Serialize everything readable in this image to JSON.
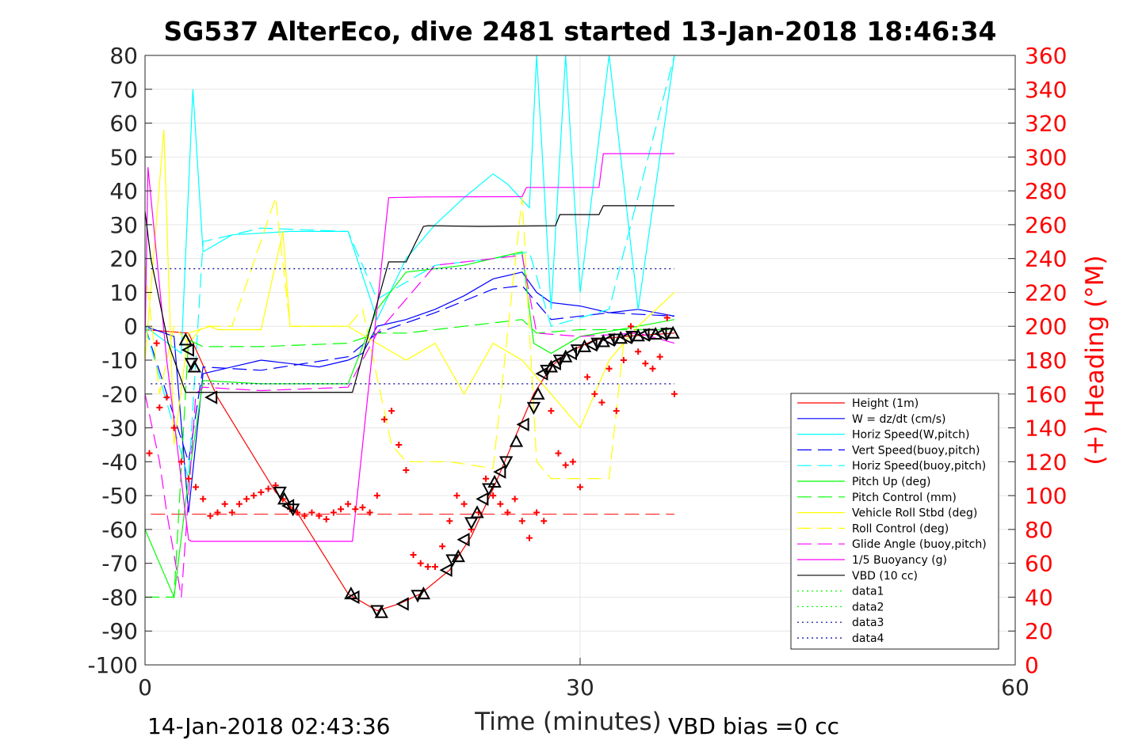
{
  "chart_data": {
    "type": "line",
    "title": "SG537 AlterEco, dive 2481 started 13-Jan-2018 18:46:34",
    "xlabel": "Time (minutes)",
    "ylabel_right": "(+) Heading (°M)",
    "xlim": [
      0,
      60
    ],
    "ylim": [
      -100,
      80
    ],
    "ylim_right": [
      0,
      360
    ],
    "xticks": [
      "0",
      "30",
      "60"
    ],
    "yticks": [
      "80",
      "70",
      "60",
      "50",
      "40",
      "30",
      "20",
      "10",
      "0",
      "-10",
      "-20",
      "-30",
      "-40",
      "-50",
      "-60",
      "-70",
      "-80",
      "-90",
      "-100"
    ],
    "yticks_right": [
      "360",
      "340",
      "320",
      "300",
      "280",
      "260",
      "240",
      "220",
      "200",
      "180",
      "160",
      "140",
      "120",
      "100",
      "80",
      "60",
      "40",
      "20",
      "0"
    ],
    "grid": true,
    "legend_position": "lower-right",
    "footer_left": "14-Jan-2018 02:43:36",
    "footer_right": "VBD bias =0 cc",
    "colors": {
      "red": "#ff0000",
      "blue": "#0000ff",
      "cyan": "#00ffff",
      "darkblue": "#0000a0",
      "green": "#00ff00",
      "yellow": "#ffff00",
      "magenta": "#ff00ff",
      "black": "#000000"
    },
    "series": [
      {
        "name": "Height (1m)",
        "color": "#ff0000",
        "style": "solid",
        "x": [
          0,
          3,
          5,
          9,
          10.5,
          14,
          16,
          17.5,
          19,
          21,
          22.5,
          24,
          25.5,
          26.8,
          28,
          29,
          30,
          31,
          33,
          36.5
        ],
        "y": [
          -1,
          -2,
          -21,
          -49,
          -55,
          -79,
          -84,
          -82,
          -79,
          -72,
          -62,
          -48,
          -33,
          -20,
          -12,
          -8,
          -6,
          -4,
          -3,
          -2
        ]
      },
      {
        "name": "W = dz/dt (cm/s)",
        "color": "#0000ff",
        "style": "solid",
        "x": [
          0,
          2,
          3,
          4,
          6,
          8,
          10,
          12,
          14,
          15,
          16,
          18,
          20,
          22,
          24,
          26,
          27,
          28,
          30,
          32,
          34,
          36.5
        ],
        "y": [
          0,
          -3,
          -55,
          -14,
          -12,
          -10,
          -11,
          -12,
          -10,
          -8,
          0,
          2,
          5,
          9,
          14,
          16,
          10,
          7,
          6,
          4,
          5,
          3
        ]
      },
      {
        "name": "Horiz Speed(W,pitch)",
        "color": "#00ffff",
        "style": "solid",
        "x": [
          0,
          2.5,
          3.3,
          4,
          6,
          10,
          14,
          15,
          16,
          18,
          20,
          22,
          24,
          25,
          26.5,
          27,
          28,
          29,
          30,
          32,
          34,
          36.5
        ],
        "y": [
          0,
          -8,
          70,
          22,
          27,
          28,
          28,
          15,
          2,
          20,
          30,
          38,
          45,
          42,
          35,
          80,
          5,
          80,
          10,
          80,
          5,
          80
        ]
      },
      {
        "name": "Vert Speed(buoy,pitch)",
        "color": "#0000ff",
        "style": "dashed",
        "x": [
          0,
          3,
          4,
          8,
          14,
          16,
          20,
          24,
          26,
          28,
          32,
          36.5
        ],
        "y": [
          0,
          -40,
          -12,
          -13,
          -9,
          -2,
          4,
          11,
          12,
          2,
          4,
          3
        ]
      },
      {
        "name": "Horiz Speed(buoy,pitch)",
        "color": "#00ffff",
        "style": "dashed",
        "x": [
          0,
          3,
          4,
          8,
          14,
          16,
          20,
          24,
          26.5,
          28,
          32,
          36.5
        ],
        "y": [
          0,
          -45,
          25,
          29,
          28,
          8,
          18,
          20,
          22,
          0,
          5,
          80
        ]
      },
      {
        "name": "Pitch Up (deg)",
        "color": "#00ff00",
        "style": "solid",
        "x": [
          0,
          1,
          2,
          3,
          4,
          8,
          14,
          16,
          18,
          22,
          26,
          26.8,
          28,
          30,
          34,
          36.5
        ],
        "y": [
          -60,
          -70,
          -80,
          -45,
          -16,
          -17,
          -17,
          5,
          16,
          18,
          22,
          -5,
          -8,
          -3,
          0,
          2
        ]
      },
      {
        "name": "Pitch Control (mm)",
        "color": "#00ff00",
        "style": "dashed",
        "x": [
          0,
          2,
          3,
          4,
          8,
          14,
          16,
          18,
          22,
          26,
          27,
          30,
          36.5
        ],
        "y": [
          -80,
          -80,
          -4,
          -6,
          -6,
          -5,
          -2,
          -2,
          0,
          2,
          -2,
          -1,
          -1
        ]
      },
      {
        "name": "Vehicle Roll Stbd (deg)",
        "color": "#ffff00",
        "style": "solid",
        "x": [
          0,
          1.3,
          2,
          3,
          4.5,
          5,
          8,
          9.5,
          10,
          14,
          16,
          18,
          20,
          22,
          24,
          26,
          28,
          30,
          32,
          34,
          36.5
        ],
        "y": [
          -10,
          58,
          -35,
          -2,
          0,
          -1,
          -1,
          28,
          0,
          0,
          -5,
          -10,
          -5,
          -20,
          -5,
          -10,
          -20,
          -30,
          -10,
          0,
          10
        ]
      },
      {
        "name": "Roll Control (deg)",
        "color": "#ffff00",
        "style": "dashed",
        "x": [
          0,
          1,
          2,
          3,
          4,
          6,
          9,
          10,
          14,
          15,
          17,
          18,
          19,
          21,
          24,
          26,
          27,
          28,
          30,
          32,
          33
        ],
        "y": [
          18,
          -20,
          0,
          -5,
          0,
          0,
          38,
          0,
          0,
          5,
          -35,
          -40,
          -40,
          -40,
          -42,
          38,
          -40,
          -45,
          -45,
          -45,
          -5
        ]
      },
      {
        "name": "Glide Angle (buoy,pitch)",
        "color": "#ff00ff",
        "style": "dashed",
        "x": [
          0,
          1,
          1.5,
          2.5,
          3.5,
          4,
          8,
          14,
          16,
          20,
          24,
          26,
          27,
          30,
          34,
          36.5
        ],
        "y": [
          -20,
          -40,
          -55,
          -80,
          -20,
          -18,
          -19,
          -18,
          -2,
          18,
          20,
          21,
          -2,
          -3,
          -2,
          -5
        ]
      },
      {
        "name": "1/5 Buoyancy (g)",
        "color": "#ff00ff",
        "style": "solid",
        "x": [
          0,
          0.2,
          1.5,
          3,
          3.2,
          14.3,
          16.8,
          19.2,
          26,
          26.3,
          31.3,
          31.6,
          36.5
        ],
        "y": [
          -5,
          47,
          -10,
          -63,
          -63.5,
          -63.5,
          38,
          38.2,
          38.3,
          41,
          41,
          51,
          51
        ]
      },
      {
        "name": "VBD (10 cc)",
        "color": "#000000",
        "style": "solid",
        "x": [
          0,
          0.4,
          1.6,
          2.8,
          14.3,
          16.8,
          18,
          19.2,
          19.5,
          23,
          28.3,
          28.6,
          31.3,
          31.6,
          36.5
        ],
        "y": [
          34,
          20,
          -5,
          -19.5,
          -19.5,
          19,
          19,
          29.5,
          29.7,
          29.5,
          29.7,
          33,
          33,
          35.6,
          35.6
        ]
      },
      {
        "name": "data1",
        "color": "#00ff00",
        "style": "dotted",
        "x": [],
        "y": []
      },
      {
        "name": "data2",
        "color": "#00ff00",
        "style": "dotted",
        "x": [],
        "y": []
      },
      {
        "name": "data3",
        "color": "#0000a0",
        "style": "dotted",
        "x": [
          0.4,
          36.5
        ],
        "y": [
          17,
          17
        ]
      },
      {
        "name": "data4",
        "color": "#0000a0",
        "style": "dotted",
        "x": [
          0.4,
          36.5
        ],
        "y": [
          -17,
          -17
        ]
      }
    ],
    "reference_lines": [
      {
        "color": "#ff0000",
        "style": "dashed",
        "y": -55.5,
        "x": [
          0.4,
          36.5
        ]
      }
    ],
    "heading_points": {
      "color": "#ff0000",
      "marker": "+",
      "axis": "right",
      "x": [
        0.3,
        0.8,
        1.0,
        1.5,
        2.0,
        2.5,
        3.0,
        3.5,
        4.0,
        4.5,
        5.0,
        5.5,
        6.0,
        6.5,
        7.0,
        7.5,
        8.0,
        8.5,
        9.0,
        9.5,
        10.0,
        10.5,
        11.0,
        11.5,
        12.0,
        12.5,
        13.0,
        13.5,
        14.0,
        14.5,
        15.0,
        15.5,
        16.0,
        16.5,
        17.0,
        17.5,
        18.0,
        18.5,
        19.0,
        19.5,
        20.0,
        20.5,
        21.0,
        21.5,
        22.0,
        22.5,
        23.0,
        23.5,
        24.0,
        24.5,
        25.0,
        25.5,
        26.0,
        26.5,
        27.0,
        27.5,
        28.0,
        28.5,
        29.0,
        29.5,
        30.0,
        30.5,
        31.0,
        31.5,
        32.0,
        32.5,
        33.0,
        33.5,
        34.0,
        34.5,
        35.0,
        35.5,
        36.0,
        36.5
      ],
      "y": [
        125,
        190,
        152,
        158,
        140,
        120,
        110,
        105,
        98,
        88,
        90,
        95,
        90,
        95,
        98,
        100,
        102,
        104,
        106,
        98,
        92,
        90,
        88,
        90,
        88,
        86,
        90,
        92,
        95,
        92,
        93,
        90,
        100,
        145,
        150,
        130,
        115,
        65,
        60,
        58,
        58,
        70,
        85,
        100,
        95,
        80,
        90,
        110,
        100,
        95,
        90,
        98,
        85,
        75,
        90,
        85,
        150,
        125,
        118,
        120,
        105,
        170,
        160,
        155,
        175,
        150,
        180,
        200,
        185,
        178,
        175,
        182,
        205,
        160
      ]
    },
    "direction_markers": {
      "color": "#000000",
      "marker": "triangle",
      "x": [
        2.8,
        3.0,
        3.2,
        3.4,
        4.6,
        9.3,
        9.6,
        9.9,
        10.2,
        14.2,
        14.4,
        16.0,
        16.3,
        17.8,
        18.8,
        19.2,
        20.8,
        21.2,
        21.6,
        22.0,
        22.5,
        22.9,
        23.3,
        23.7,
        24.1,
        24.5,
        24.9,
        25.6,
        26.1,
        26.8,
        27.1,
        27.4,
        27.7,
        28.0,
        28.3,
        28.6,
        29.0,
        29.4,
        29.8,
        30.3,
        30.8,
        31.2,
        31.6,
        32.0,
        32.4,
        32.8,
        33.2,
        33.6,
        34.0,
        34.4,
        34.8,
        35.2,
        35.6,
        36.0,
        36.4
      ],
      "y": [
        -4,
        -7,
        -11,
        -12,
        -21,
        -49,
        -51,
        -53,
        -54,
        -79,
        -80,
        -84,
        -84.5,
        -82,
        -79.5,
        -79,
        -72,
        -69,
        -68,
        -63,
        -58,
        -55,
        -51,
        -48,
        -46,
        -43,
        -40,
        -34,
        -29,
        -24,
        -20,
        -14,
        -13,
        -12,
        -11,
        -10,
        -9,
        -8,
        -7,
        -6,
        -5.5,
        -5,
        -4.5,
        -4,
        -3.8,
        -3.5,
        -3.3,
        -3,
        -2.8,
        -2.5,
        -2.4,
        -2.3,
        -2.2,
        -2.1,
        -2
      ]
    }
  }
}
